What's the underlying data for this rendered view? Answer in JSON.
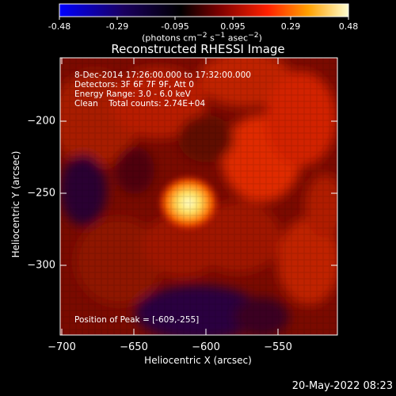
{
  "colorbar": {
    "ticks": [
      "-0.48",
      "-0.29",
      "-0.095",
      "0.095",
      "0.29",
      "0.48"
    ],
    "units_html": "(photons cm<sup>−2</sup> s<sup>−1</sup> asec<sup>−2</sup>)"
  },
  "chart_data": {
    "type": "heatmap",
    "title": "Reconstructed RHESSI Image",
    "xlabel": "Heliocentric X (arcsec)",
    "ylabel": "Heliocentric Y (arcsec)",
    "xticks": [
      "−700",
      "−650",
      "−600",
      "−550"
    ],
    "yticks": [
      "−200",
      "−250",
      "−300"
    ],
    "xlim": [
      -705,
      -510
    ],
    "ylim": [
      -350,
      -160
    ],
    "colorbar_range": [
      -0.48,
      0.48
    ],
    "peak": {
      "x": -609,
      "y": -255,
      "value": 0.48
    },
    "annotations": {
      "time": "8-Dec-2014 17:26:00.000 to 17:32:00.000",
      "detectors": "Detectors: 3F 6F 7F 9F, Att 0",
      "energy": "Energy Range: 3.0 - 6.0 keV",
      "method": "Clean    Total counts: 2.74E+04",
      "peak_label": "Position of Peak = [-609,-255]"
    }
  },
  "footer": {
    "date": "20-May-2022 08:23"
  }
}
